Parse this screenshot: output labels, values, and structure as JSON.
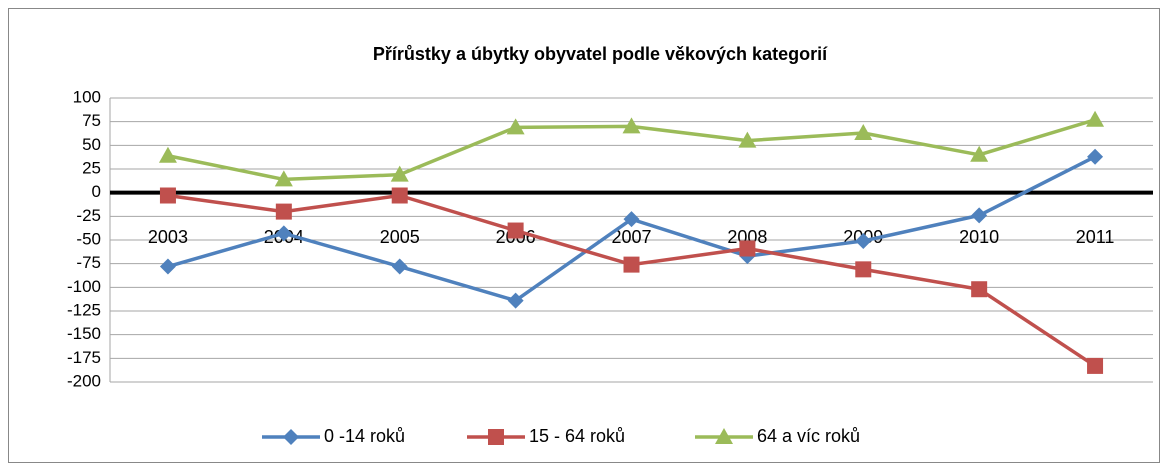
{
  "chart_data": {
    "type": "line",
    "title": "Přírůstky a úbytky obyvatel podle věkových kategorií",
    "categories": [
      "2003",
      "2004",
      "2005",
      "2006",
      "2007",
      "2008",
      "2009",
      "2010",
      "2011"
    ],
    "series": [
      {
        "name": "0 -14 roků",
        "color": "#4f81bd",
        "marker": "diamond",
        "values": [
          -78,
          -43,
          -78,
          -114,
          -28,
          -67,
          -51,
          -24,
          38
        ]
      },
      {
        "name": "15 - 64 roků",
        "color": "#c0504d",
        "marker": "square",
        "values": [
          -3,
          -20,
          -3,
          -40,
          -76,
          -59,
          -81,
          -102,
          -183
        ]
      },
      {
        "name": "64 a víc roků",
        "color": "#9bbb59",
        "marker": "triangle",
        "values": [
          39,
          14,
          19,
          69,
          70,
          55,
          63,
          40,
          77
        ]
      }
    ],
    "ylim": [
      -200,
      100
    ],
    "yticks": [
      100,
      75,
      50,
      25,
      0,
      -25,
      -50,
      -75,
      -100,
      -125,
      -150,
      -175,
      -200
    ],
    "grid": true,
    "legend": "bottom"
  }
}
